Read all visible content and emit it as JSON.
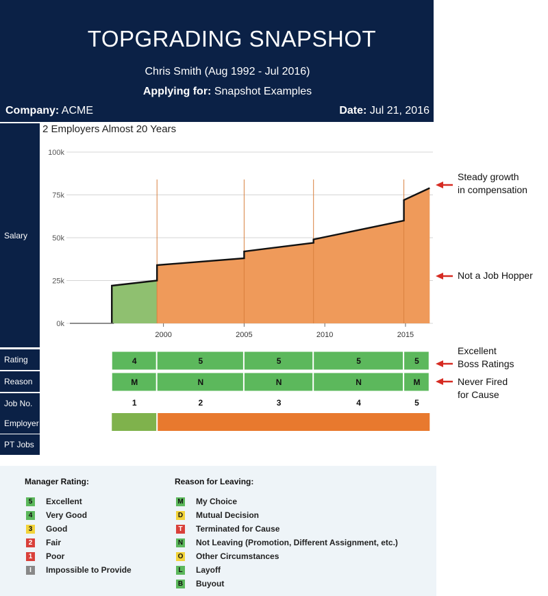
{
  "header": {
    "title": "TOPGRADING SNAPSHOT",
    "candidate": "Chris Smith (Aug 1992 - Jul 2016)",
    "applying_label": "Applying for:",
    "applying_value": "Snapshot Examples",
    "company_label": "Company:",
    "company_value": "ACME",
    "date_label": "Date:",
    "date_value": "Jul 21, 2016"
  },
  "sidebar": {
    "salary": "Salary",
    "rating": "Rating",
    "reason": "Reason",
    "jobno": "Job No.",
    "employer": "Employer",
    "ptjobs": "PT Jobs"
  },
  "colors": {
    "navy": "#0b2146",
    "green": "#5cb85c",
    "light_green": "#8fc070",
    "orange": "#ef9a5a",
    "orange_bar": "#e8792e",
    "employer1_bar": "#7fb24c",
    "yellow": "#f2d33a",
    "red": "#d9403a",
    "gray": "#888888",
    "arrow": "#d62b22"
  },
  "chart_data": {
    "type": "area",
    "title": "2 Employers Almost 20 Years",
    "ylabel": "Salary",
    "xlabel": "",
    "ylim": [
      0,
      100000
    ],
    "xlim": [
      1994.2,
      2016.7
    ],
    "y_ticks": [
      0,
      25000,
      50000,
      75000,
      100000
    ],
    "y_tick_labels": [
      "0k",
      "25k",
      "50k",
      "75k",
      "100k"
    ],
    "x_ticks": [
      2000,
      2005,
      2010,
      2015
    ],
    "x_tick_labels": [
      "2000",
      "2005",
      "2010",
      "2015"
    ],
    "series": [
      {
        "name": "Employer 1",
        "color": "#8fc070",
        "x": [
          1996.8,
          1999.6
        ],
        "y": [
          22000,
          25000
        ]
      },
      {
        "name": "Employer 2",
        "color": "#ef9a5a",
        "x": [
          1999.6,
          2005.0,
          2005.0,
          2009.3,
          2009.3,
          2014.9,
          2014.9,
          2016.5
        ],
        "y": [
          34000,
          38000,
          42000,
          47000,
          49000,
          60000,
          72000,
          79000
        ]
      }
    ],
    "jobs": [
      {
        "job_no": "1",
        "rating": "4",
        "reason": "M",
        "start": 1996.8,
        "end": 1999.6,
        "employer": 1
      },
      {
        "job_no": "2",
        "rating": "5",
        "reason": "N",
        "start": 1999.6,
        "end": 2005.0,
        "employer": 2
      },
      {
        "job_no": "3",
        "rating": "5",
        "reason": "N",
        "start": 2005.0,
        "end": 2009.3,
        "employer": 2
      },
      {
        "job_no": "4",
        "rating": "5",
        "reason": "N",
        "start": 2009.3,
        "end": 2014.9,
        "employer": 2
      },
      {
        "job_no": "5",
        "rating": "5",
        "reason": "M",
        "start": 2014.9,
        "end": 2016.5,
        "employer": 2
      }
    ]
  },
  "annotations": {
    "growth": [
      "Steady growth",
      "in compensation"
    ],
    "hopper": [
      "Not a Job Hopper"
    ],
    "ratings": [
      "Excellent",
      "Boss Ratings"
    ],
    "fired": [
      "Never Fired",
      "for Cause"
    ]
  },
  "legend": {
    "manager_title": "Manager Rating:",
    "manager_items": [
      {
        "code": "5",
        "label": "Excellent",
        "color": "#5cb85c"
      },
      {
        "code": "4",
        "label": "Very Good",
        "color": "#5cb85c"
      },
      {
        "code": "3",
        "label": "Good",
        "color": "#f2d33a"
      },
      {
        "code": "2",
        "label": "Fair",
        "color": "#d9403a"
      },
      {
        "code": "1",
        "label": "Poor",
        "color": "#d9403a"
      },
      {
        "code": "I",
        "label": "Impossible to Provide",
        "color": "#888888"
      }
    ],
    "reason_title": "Reason for Leaving:",
    "reason_items": [
      {
        "code": "M",
        "label": "My Choice",
        "color": "#5cb85c"
      },
      {
        "code": "D",
        "label": "Mutual Decision",
        "color": "#f2d33a"
      },
      {
        "code": "T",
        "label": "Terminated for Cause",
        "color": "#d9403a"
      },
      {
        "code": "N",
        "label": "Not Leaving (Promotion, Different Assignment, etc.)",
        "color": "#5cb85c"
      },
      {
        "code": "O",
        "label": "Other Circumstances",
        "color": "#f2d33a"
      },
      {
        "code": "L",
        "label": "Layoff",
        "color": "#5cb85c"
      },
      {
        "code": "B",
        "label": "Buyout",
        "color": "#5cb85c"
      }
    ]
  }
}
